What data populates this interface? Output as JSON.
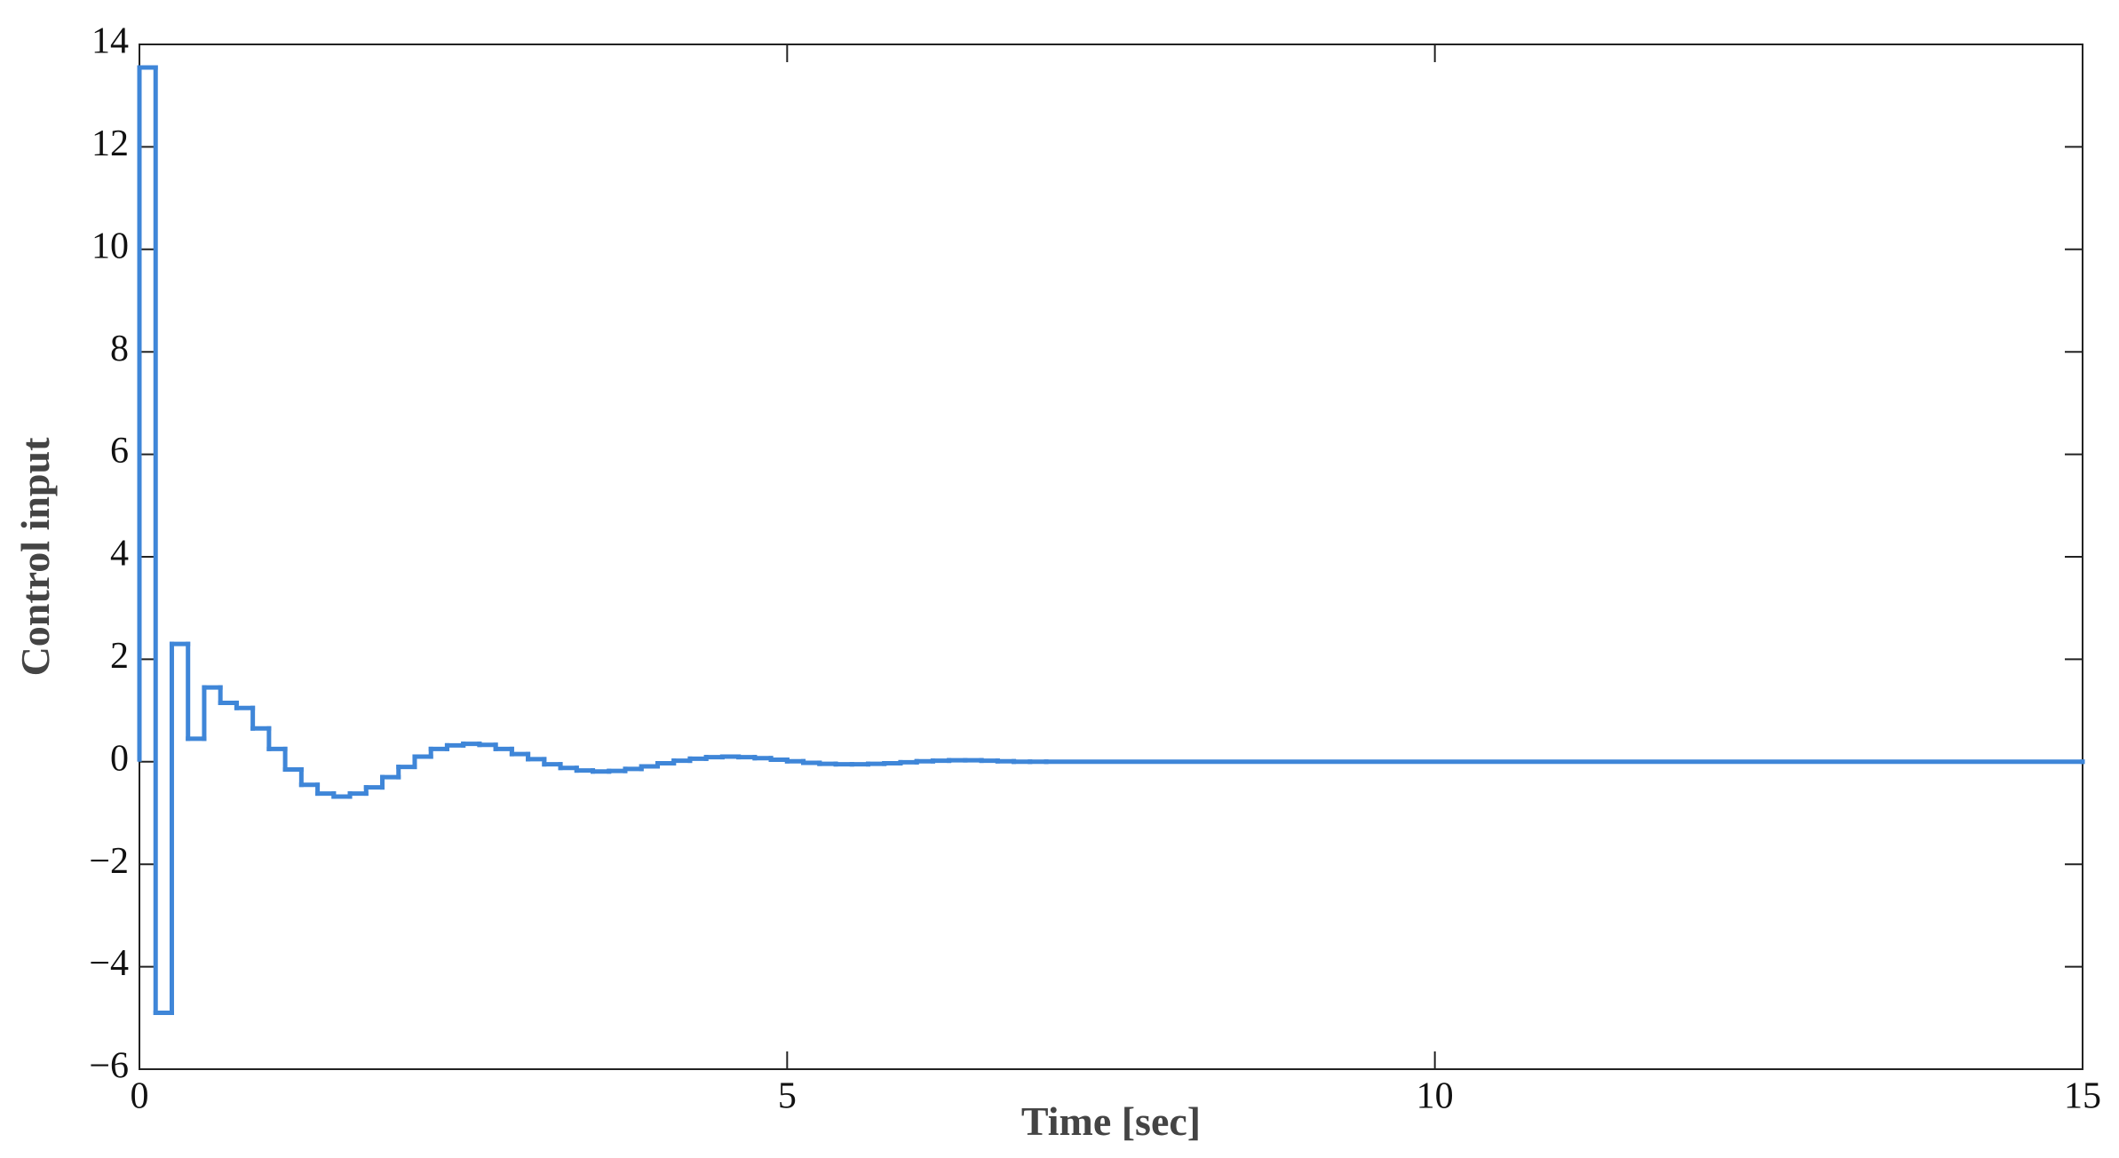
{
  "chart_data": {
    "type": "step",
    "xlabel": "Time [sec]",
    "ylabel": "Control input",
    "series": [
      {
        "name": null,
        "color": "#3f86d8",
        "x": [
          0,
          0.125,
          0.25,
          0.375,
          0.5,
          0.625,
          0.75,
          0.875,
          1,
          1.125,
          1.25,
          1.375,
          1.5,
          1.625,
          1.75,
          1.875,
          2,
          2.125,
          2.25,
          2.375,
          2.5,
          2.625,
          2.75,
          2.875,
          3,
          3.125,
          3.25,
          3.375,
          3.5,
          3.625,
          3.75,
          3.875,
          4,
          4.125,
          4.25,
          4.375,
          4.5,
          4.625,
          4.75,
          4.875,
          5,
          5.125,
          5.25,
          5.375,
          5.5,
          5.625,
          5.75,
          5.875,
          6,
          6.125,
          6.25,
          6.375,
          6.5,
          6.625,
          6.75,
          6.875,
          7,
          15
        ],
        "values": [
          13.55,
          -4.9,
          2.3,
          0.45,
          1.45,
          1.15,
          1.05,
          0.65,
          0.25,
          -0.15,
          -0.45,
          -0.62,
          -0.68,
          -0.62,
          -0.5,
          -0.3,
          -0.1,
          0.1,
          0.25,
          0.32,
          0.35,
          0.33,
          0.25,
          0.15,
          0.05,
          -0.05,
          -0.12,
          -0.17,
          -0.19,
          -0.18,
          -0.14,
          -0.09,
          -0.03,
          0.02,
          0.06,
          0.09,
          0.1,
          0.09,
          0.07,
          0.04,
          0.01,
          -0.02,
          -0.04,
          -0.05,
          -0.05,
          -0.04,
          -0.03,
          -0.01,
          0.01,
          0.02,
          0.03,
          0.03,
          0.02,
          0.01,
          0,
          0,
          0,
          0
        ]
      }
    ],
    "xlim": [
      0,
      15
    ],
    "xticks": [
      0,
      5,
      10,
      15
    ],
    "ylim": [
      -6,
      14
    ],
    "yticks": [
      {
        "value": -6,
        "label": "−6"
      },
      {
        "value": -4,
        "label": "−4"
      },
      {
        "value": -2,
        "label": "−2"
      },
      0,
      2,
      4,
      6,
      8,
      10,
      12,
      14
    ]
  }
}
